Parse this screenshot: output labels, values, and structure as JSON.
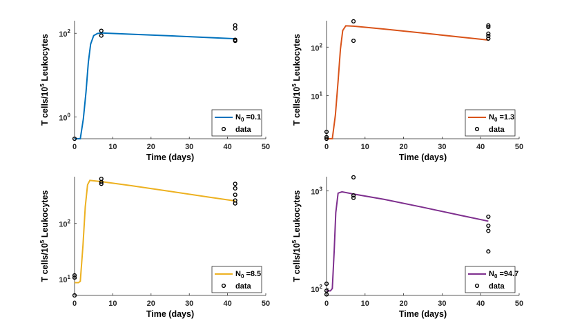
{
  "chart_data": [
    {
      "type": "line",
      "panel": "top-left",
      "xlabel": "Time (days)",
      "ylabel": "T cells/10^5 Leukocytes",
      "xlim": [
        0,
        50
      ],
      "x_ticks": [
        0,
        10,
        20,
        30,
        40,
        50
      ],
      "y_scale": "log",
      "ylim": [
        0.3,
        200
      ],
      "y_ticks": [
        {
          "value": 1,
          "label": "10^0"
        },
        {
          "value": 100,
          "label": "10^2"
        }
      ],
      "series": [
        {
          "name": "N_0 =0.1",
          "color": "#0072BD",
          "x": [
            0,
            1.5,
            2.3,
            3.0,
            3.6,
            4.2,
            5.0,
            6.0,
            7.0,
            15,
            25,
            35,
            42
          ],
          "y": [
            0.3,
            0.3,
            0.9,
            4,
            20,
            55,
            88,
            99,
            102,
            95,
            87,
            79,
            74
          ]
        }
      ],
      "data_points": {
        "name": "data",
        "x": [
          0,
          7,
          7,
          42,
          42,
          42,
          42
        ],
        "y": [
          0.3,
          115,
          88,
          155,
          130,
          70,
          66
        ]
      },
      "legend": {
        "position": "bottom-right",
        "line_label": "N_0 =0.1",
        "data_label": "data"
      }
    },
    {
      "type": "line",
      "panel": "top-right",
      "xlabel": "Time (days)",
      "ylabel": "T cells/10^5 Leukocytes",
      "xlim": [
        0,
        50
      ],
      "x_ticks": [
        0,
        10,
        20,
        30,
        40,
        50
      ],
      "y_scale": "log",
      "ylim": [
        1.3,
        350
      ],
      "y_ticks": [
        {
          "value": 10,
          "label": "10^1"
        },
        {
          "value": 100,
          "label": "10^2"
        }
      ],
      "series": [
        {
          "name": "N_0 =1.3",
          "color": "#D95319",
          "x": [
            0,
            1.5,
            2.3,
            3.0,
            3.6,
            4.2,
            5.0,
            7,
            15,
            25,
            35,
            42
          ],
          "y": [
            1.3,
            1.3,
            4,
            20,
            90,
            220,
            275,
            270,
            235,
            195,
            160,
            140
          ]
        },
        {
          "name": "",
          "color": "#D95319",
          "x": [
            0,
            1.5
          ],
          "y": [
            1.3,
            1.3
          ]
        }
      ],
      "data_points": {
        "name": "data",
        "x": [
          0,
          0,
          0,
          7,
          7,
          42,
          42,
          42,
          42,
          42
        ],
        "y": [
          1.8,
          1.4,
          1.3,
          340,
          135,
          280,
          260,
          190,
          170,
          150
        ]
      },
      "legend": {
        "position": "bottom-right",
        "line_label": "N_0 =1.3",
        "data_label": "data"
      }
    },
    {
      "type": "line",
      "panel": "bottom-left",
      "xlabel": "Time (days)",
      "ylabel": "T cells/10^5 Leukocytes",
      "xlim": [
        0,
        50
      ],
      "x_ticks": [
        0,
        10,
        20,
        30,
        40,
        50
      ],
      "y_scale": "log",
      "ylim": [
        5,
        700
      ],
      "y_ticks": [
        {
          "value": 10,
          "label": "10^1"
        },
        {
          "value": 100,
          "label": "10^2"
        }
      ],
      "series": [
        {
          "name": "N_0 =8.5",
          "color": "#EDB120",
          "x": [
            0,
            1.0,
            1.5,
            2.2,
            2.8,
            3.4,
            4.0,
            7,
            15,
            25,
            35,
            42
          ],
          "y": [
            8.5,
            8.5,
            9,
            40,
            200,
            500,
            600,
            570,
            480,
            380,
            300,
            255
          ]
        }
      ],
      "data_points": {
        "name": "data",
        "x": [
          0,
          0,
          0,
          7,
          7,
          7,
          42,
          42,
          42,
          42,
          42
        ],
        "y": [
          5,
          10.5,
          11.5,
          640,
          560,
          520,
          520,
          430,
          330,
          260,
          230
        ]
      },
      "legend": {
        "position": "bottom-right",
        "line_label": "N_0 =8.5",
        "data_label": "data"
      }
    },
    {
      "type": "line",
      "panel": "bottom-right",
      "xlabel": "Time (days)",
      "ylabel": "T cells/10^5 Leukocytes",
      "xlim": [
        0,
        50
      ],
      "x_ticks": [
        0,
        10,
        20,
        30,
        40,
        50
      ],
      "y_scale": "log",
      "ylim": [
        85,
        1400
      ],
      "y_ticks": [
        {
          "value": 100,
          "label": "10^2"
        },
        {
          "value": 1000,
          "label": "10^3"
        }
      ],
      "series": [
        {
          "name": "N_0 =94.7",
          "color": "#7E2F8E",
          "x": [
            0,
            1.0,
            1.5,
            2.0,
            2.4,
            3.0,
            4.0,
            7,
            15,
            25,
            35,
            42
          ],
          "y": [
            94.7,
            94.7,
            100,
            250,
            600,
            950,
            980,
            930,
            820,
            680,
            560,
            490
          ]
        }
      ],
      "data_points": {
        "name": "data",
        "x": [
          0,
          0,
          0,
          7,
          7,
          7,
          42,
          42,
          42,
          42
        ],
        "y": [
          112,
          95,
          87,
          1380,
          900,
          850,
          545,
          440,
          390,
          240
        ]
      },
      "legend": {
        "position": "bottom-right",
        "line_label": "N_0 =94.7",
        "data_label": "data"
      }
    }
  ]
}
